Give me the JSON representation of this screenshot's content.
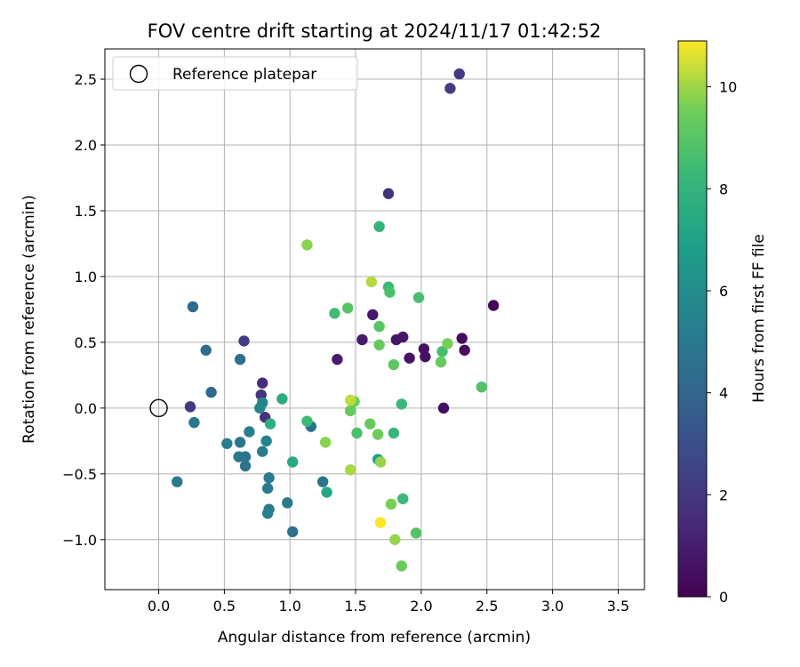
{
  "chart_data": {
    "type": "scatter",
    "title": "FOV centre drift starting at 2024/11/17 01:42:52",
    "xlabel": "Angular distance from reference (arcmin)",
    "ylabel": "Rotation from reference (arcmin)",
    "xlim": [
      -0.41,
      3.7
    ],
    "ylim": [
      -1.38,
      2.73
    ],
    "xticks": [
      0.0,
      0.5,
      1.0,
      1.5,
      2.0,
      2.5,
      3.0,
      3.5
    ],
    "xtick_labels": [
      "0.0",
      "0.5",
      "1.0",
      "1.5",
      "2.0",
      "2.5",
      "3.0",
      "3.5"
    ],
    "yticks": [
      -1.0,
      -0.5,
      0.0,
      0.5,
      1.0,
      1.5,
      2.0,
      2.5
    ],
    "ytick_labels": [
      "−1.0",
      "−0.5",
      "0.0",
      "0.5",
      "1.0",
      "1.5",
      "2.0",
      "2.5"
    ],
    "grid": true,
    "legend": {
      "location": "upper-left",
      "entries": [
        {
          "label": "Reference platepar",
          "marker": "open-circle"
        }
      ]
    },
    "reference_point": {
      "x": 0.0,
      "y": 0.0
    },
    "colorbar": {
      "label": "Hours from first FF file",
      "colormap": "viridis",
      "range": [
        0,
        10.9
      ],
      "ticks": [
        0,
        2,
        4,
        6,
        8,
        10
      ],
      "tick_labels": [
        "0",
        "2",
        "4",
        "6",
        "8",
        "10"
      ]
    },
    "series": [
      {
        "points": [
          {
            "x": 2.55,
            "y": 0.78,
            "c": 0.1
          },
          {
            "x": 2.31,
            "y": 0.53,
            "c": 0.3
          },
          {
            "x": 2.33,
            "y": 0.44,
            "c": 0.4
          },
          {
            "x": 2.17,
            "y": 0.0,
            "c": 0.5
          },
          {
            "x": 2.02,
            "y": 0.45,
            "c": 0.6
          },
          {
            "x": 2.03,
            "y": 0.39,
            "c": 0.6
          },
          {
            "x": 1.91,
            "y": 0.38,
            "c": 0.7
          },
          {
            "x": 1.86,
            "y": 0.54,
            "c": 0.8
          },
          {
            "x": 1.81,
            "y": 0.52,
            "c": 0.7
          },
          {
            "x": 1.63,
            "y": 0.71,
            "c": 0.8
          },
          {
            "x": 1.55,
            "y": 0.52,
            "c": 0.9
          },
          {
            "x": 1.36,
            "y": 0.37,
            "c": 1.0
          },
          {
            "x": 1.75,
            "y": 1.63,
            "c": 1.8
          },
          {
            "x": 2.29,
            "y": 2.54,
            "c": 2.1
          },
          {
            "x": 2.22,
            "y": 2.43,
            "c": 2.2
          },
          {
            "x": 0.24,
            "y": 0.01,
            "c": 2.0
          },
          {
            "x": 0.65,
            "y": 0.51,
            "c": 2.2
          },
          {
            "x": 0.79,
            "y": 0.19,
            "c": 1.6
          },
          {
            "x": 0.78,
            "y": 0.1,
            "c": 1.8
          },
          {
            "x": 0.81,
            "y": -0.07,
            "c": 1.9
          },
          {
            "x": 0.26,
            "y": 0.77,
            "c": 4.3
          },
          {
            "x": 0.36,
            "y": 0.44,
            "c": 4.3
          },
          {
            "x": 0.4,
            "y": 0.12,
            "c": 4.2
          },
          {
            "x": 0.62,
            "y": 0.37,
            "c": 4.4
          },
          {
            "x": 0.14,
            "y": -0.56,
            "c": 5.0
          },
          {
            "x": 0.27,
            "y": -0.11,
            "c": 5.0
          },
          {
            "x": 0.52,
            "y": -0.27,
            "c": 5.3
          },
          {
            "x": 0.61,
            "y": -0.37,
            "c": 4.9
          },
          {
            "x": 0.62,
            "y": -0.26,
            "c": 4.8
          },
          {
            "x": 0.66,
            "y": -0.37,
            "c": 4.8
          },
          {
            "x": 0.66,
            "y": -0.44,
            "c": 4.6
          },
          {
            "x": 0.69,
            "y": -0.18,
            "c": 5.3
          },
          {
            "x": 0.77,
            "y": 0.0,
            "c": 5.5
          },
          {
            "x": 0.79,
            "y": 0.04,
            "c": 5.7
          },
          {
            "x": 0.79,
            "y": -0.33,
            "c": 5.1
          },
          {
            "x": 0.82,
            "y": -0.25,
            "c": 5.4
          },
          {
            "x": 0.83,
            "y": -0.61,
            "c": 5.0
          },
          {
            "x": 0.84,
            "y": -0.53,
            "c": 5.1
          },
          {
            "x": 0.84,
            "y": -0.77,
            "c": 4.9
          },
          {
            "x": 0.83,
            "y": -0.8,
            "c": 5.3
          },
          {
            "x": 0.98,
            "y": -0.72,
            "c": 5.0
          },
          {
            "x": 1.02,
            "y": -0.94,
            "c": 4.5
          },
          {
            "x": 1.16,
            "y": -0.14,
            "c": 4.6
          },
          {
            "x": 1.25,
            "y": -0.56,
            "c": 4.8
          },
          {
            "x": 0.85,
            "y": -0.12,
            "c": 7.7
          },
          {
            "x": 0.94,
            "y": 0.07,
            "c": 7.6
          },
          {
            "x": 1.02,
            "y": -0.41,
            "c": 7.4
          },
          {
            "x": 1.13,
            "y": -0.1,
            "c": 8.3
          },
          {
            "x": 1.28,
            "y": -0.64,
            "c": 7.3
          },
          {
            "x": 1.67,
            "y": -0.39,
            "c": 6.8
          },
          {
            "x": 1.68,
            "y": 1.38,
            "c": 8.0
          },
          {
            "x": 1.75,
            "y": 0.92,
            "c": 8.3
          },
          {
            "x": 1.76,
            "y": 0.88,
            "c": 8.7
          },
          {
            "x": 1.98,
            "y": 0.84,
            "c": 8.6
          },
          {
            "x": 1.34,
            "y": 0.72,
            "c": 8.5
          },
          {
            "x": 1.44,
            "y": 0.76,
            "c": 9.0
          },
          {
            "x": 1.68,
            "y": 0.62,
            "c": 9.0
          },
          {
            "x": 1.68,
            "y": 0.48,
            "c": 9.3
          },
          {
            "x": 1.79,
            "y": 0.33,
            "c": 9.1
          },
          {
            "x": 2.15,
            "y": 0.35,
            "c": 9.3
          },
          {
            "x": 2.16,
            "y": 0.43,
            "c": 8.6
          },
          {
            "x": 2.2,
            "y": 0.49,
            "c": 9.6
          },
          {
            "x": 2.46,
            "y": 0.16,
            "c": 8.8
          },
          {
            "x": 1.85,
            "y": 0.03,
            "c": 8.3
          },
          {
            "x": 1.46,
            "y": -0.02,
            "c": 9.3
          },
          {
            "x": 1.49,
            "y": 0.05,
            "c": 9.5
          },
          {
            "x": 1.51,
            "y": -0.19,
            "c": 8.7
          },
          {
            "x": 1.61,
            "y": -0.12,
            "c": 9.3
          },
          {
            "x": 1.67,
            "y": -0.2,
            "c": 9.5
          },
          {
            "x": 1.79,
            "y": -0.19,
            "c": 8.2
          },
          {
            "x": 1.69,
            "y": -0.41,
            "c": 9.9
          },
          {
            "x": 1.77,
            "y": -0.73,
            "c": 9.6
          },
          {
            "x": 1.86,
            "y": -0.69,
            "c": 8.3
          },
          {
            "x": 1.96,
            "y": -0.95,
            "c": 8.9
          },
          {
            "x": 1.8,
            "y": -1.0,
            "c": 9.9
          },
          {
            "x": 1.85,
            "y": -1.2,
            "c": 9.4
          },
          {
            "x": 1.13,
            "y": 1.24,
            "c": 9.8
          },
          {
            "x": 1.27,
            "y": -0.26,
            "c": 9.8
          },
          {
            "x": 1.46,
            "y": -0.47,
            "c": 10.1
          },
          {
            "x": 1.46,
            "y": 0.06,
            "c": 10.3
          },
          {
            "x": 1.62,
            "y": 0.96,
            "c": 10.2
          },
          {
            "x": 1.69,
            "y": -0.87,
            "c": 10.9
          }
        ]
      }
    ]
  }
}
